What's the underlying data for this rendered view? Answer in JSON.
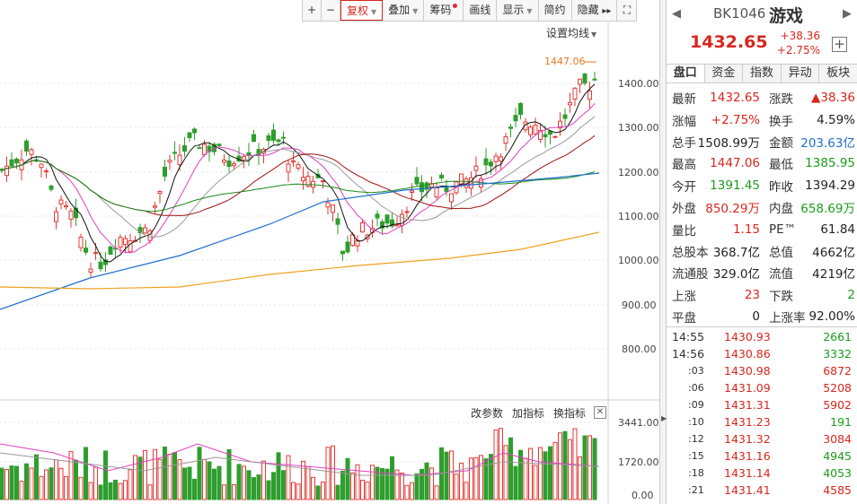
{
  "toolbar": {
    "plus": "+",
    "minus": "−",
    "fuquan": "复权",
    "diejia": "叠加",
    "chouma": "筹码",
    "huaxian": "画线",
    "xianshi": "显示",
    "jianyue": "简约",
    "yincang": "隐藏",
    "next": "▸▸",
    "fullscreen": "⛶"
  },
  "chart": {
    "set_ma": "设置均线",
    "max_label": "1447.06",
    "price_axis": [
      "1400.00",
      "1300.00",
      "1200.00",
      "1100.00",
      "1000.00",
      "900.00",
      "800.00"
    ],
    "vol_axis": [
      "3441.00",
      "1720.00",
      "0.00"
    ],
    "ind_params": "改参数",
    "ind_add": "加指标",
    "ind_switch": "换指标",
    "ind_close": "✕"
  },
  "header": {
    "code": "BK1046",
    "name": "游戏",
    "price": "1432.65",
    "change": "+38.36",
    "change_pct": "+2.75%",
    "add": "+",
    "prev": "◀",
    "next": "▶"
  },
  "tabs": [
    "盘口",
    "资金",
    "指数",
    "异动",
    "板块"
  ],
  "quote": [
    {
      "l1": "最新",
      "v1": "1432.65",
      "c1": "red",
      "l2": "涨跌",
      "v2": "▲38.36",
      "c2": "red"
    },
    {
      "l1": "涨幅",
      "v1": "+2.75%",
      "c1": "red",
      "l2": "换手",
      "v2": "4.59%",
      "c2": "blk"
    },
    {
      "l1": "总手",
      "v1": "1508.99万",
      "c1": "blk",
      "l2": "金额",
      "v2": "203.63亿",
      "c2": "blue"
    },
    {
      "l1": "最高",
      "v1": "1447.06",
      "c1": "red",
      "l2": "最低",
      "v2": "1385.95",
      "c2": "green"
    },
    {
      "l1": "今开",
      "v1": "1391.45",
      "c1": "green",
      "l2": "昨收",
      "v2": "1394.29",
      "c2": "blk"
    },
    {
      "l1": "外盘",
      "v1": "850.29万",
      "c1": "red",
      "l2": "内盘",
      "v2": "658.69万",
      "c2": "green"
    },
    {
      "l1": "量比",
      "v1": "1.15",
      "c1": "red",
      "l2": "PE™",
      "v2": "61.84",
      "c2": "blk"
    },
    {
      "l1": "总股本",
      "v1": "368.7亿",
      "c1": "blk",
      "l2": "总值",
      "v2": "4662亿",
      "c2": "blk"
    },
    {
      "l1": "流通股",
      "v1": "329.0亿",
      "c1": "blk",
      "l2": "流值",
      "v2": "4219亿",
      "c2": "blk"
    },
    {
      "l1": "上涨",
      "v1": "23",
      "c1": "red",
      "l2": "下跌",
      "v2": "2",
      "c2": "green"
    },
    {
      "l1": "平盘",
      "v1": "0",
      "c1": "blk",
      "l2": "上涨率",
      "v2": "92.00%",
      "c2": "blk"
    }
  ],
  "ticks": [
    {
      "t": "14:55",
      "p": "1430.93",
      "q": "2661",
      "qc": "green",
      "sub": false
    },
    {
      "t": "14:56",
      "p": "1430.86",
      "q": "3332",
      "qc": "green",
      "sub": false
    },
    {
      "t": ":03",
      "p": "1430.98",
      "q": "6872",
      "qc": "red",
      "sub": true
    },
    {
      "t": ":06",
      "p": "1431.09",
      "q": "5208",
      "qc": "red",
      "sub": true
    },
    {
      "t": ":09",
      "p": "1431.31",
      "q": "5902",
      "qc": "red",
      "sub": true
    },
    {
      "t": ":10",
      "p": "1431.23",
      "q": "191",
      "qc": "green",
      "sub": true
    },
    {
      "t": ":12",
      "p": "1431.32",
      "q": "3084",
      "qc": "red",
      "sub": true
    },
    {
      "t": ":15",
      "p": "1431.16",
      "q": "4945",
      "qc": "green",
      "sub": true
    },
    {
      "t": ":18",
      "p": "1431.14",
      "q": "4053",
      "qc": "green",
      "sub": true
    },
    {
      "t": ":21",
      "p": "1431.41",
      "q": "4585",
      "qc": "red",
      "sub": true
    }
  ]
}
